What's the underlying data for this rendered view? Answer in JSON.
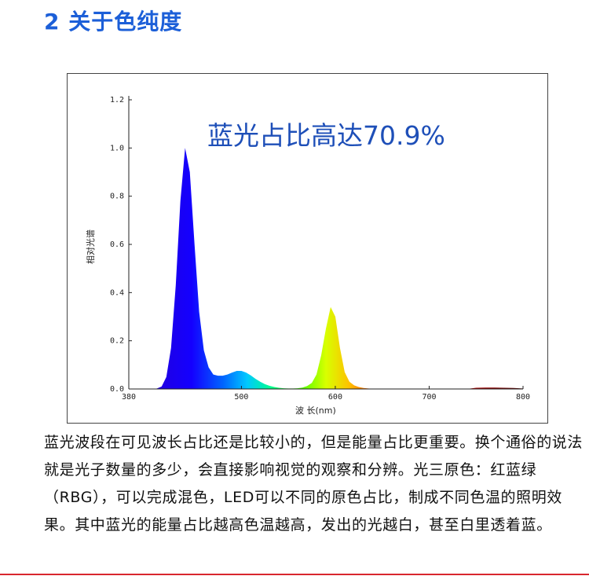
{
  "heading": "2 关于色纯度",
  "paragraph": "蓝光波段在可见波长占比还是比较小的，但是能量占比更重要。换个通俗的说法就是光子数量的多少，会直接影响视觉的观察和分辨。光三原色：红蓝绿（RBG），可以完成混色，LED可以不同的原色占比，制成不同色温的照明效果。其中蓝光的能量占比越高色温越高，发出的光越白，甚至白里透着蓝。",
  "colors": {
    "heading": "#1c5fd8",
    "annotation": "#1e4fb8",
    "rule": "#d8262d"
  },
  "chart_data": {
    "type": "area",
    "annotation": "蓝光占比高达70.9%",
    "xlabel": "波 长(nm)",
    "ylabel": "相对光谱",
    "xlim": [
      380,
      800
    ],
    "ylim": [
      0,
      1.2
    ],
    "x_ticks": [
      "380",
      "500",
      "600",
      "700",
      "800"
    ],
    "y_ticks": [
      "0.0",
      "0.2",
      "0.4",
      "0.6",
      "0.8",
      "1.0",
      "1.2"
    ],
    "grid": false,
    "fill": "visible spectrum colour gradient",
    "x": [
      380,
      385,
      390,
      395,
      400,
      405,
      410,
      415,
      420,
      425,
      430,
      435,
      440,
      445,
      450,
      455,
      460,
      465,
      470,
      475,
      480,
      485,
      490,
      495,
      500,
      505,
      510,
      515,
      520,
      525,
      530,
      535,
      540,
      545,
      550,
      555,
      560,
      565,
      570,
      575,
      580,
      585,
      590,
      595,
      600,
      605,
      610,
      615,
      620,
      625,
      630,
      635,
      640,
      645,
      650,
      655,
      660,
      665,
      670,
      675,
      680,
      685,
      690,
      695,
      700,
      710,
      720,
      730,
      740,
      750,
      760,
      770,
      780,
      790,
      800
    ],
    "y": [
      0,
      0,
      0,
      0,
      0,
      0,
      0.002,
      0.01,
      0.05,
      0.17,
      0.43,
      0.78,
      1.0,
      0.9,
      0.6,
      0.32,
      0.16,
      0.09,
      0.06,
      0.055,
      0.055,
      0.06,
      0.068,
      0.075,
      0.075,
      0.068,
      0.056,
      0.042,
      0.03,
      0.02,
      0.013,
      0.008,
      0.005,
      0.003,
      0.002,
      0.002,
      0.003,
      0.006,
      0.012,
      0.025,
      0.06,
      0.14,
      0.25,
      0.34,
      0.3,
      0.17,
      0.07,
      0.03,
      0.015,
      0.008,
      0.004,
      0.002,
      0.001,
      0,
      0,
      0,
      0,
      0,
      0,
      0,
      0,
      0,
      0,
      0,
      0,
      0,
      0,
      0,
      0,
      0.005,
      0.006,
      0.006,
      0.005,
      0.004,
      0.002
    ]
  }
}
